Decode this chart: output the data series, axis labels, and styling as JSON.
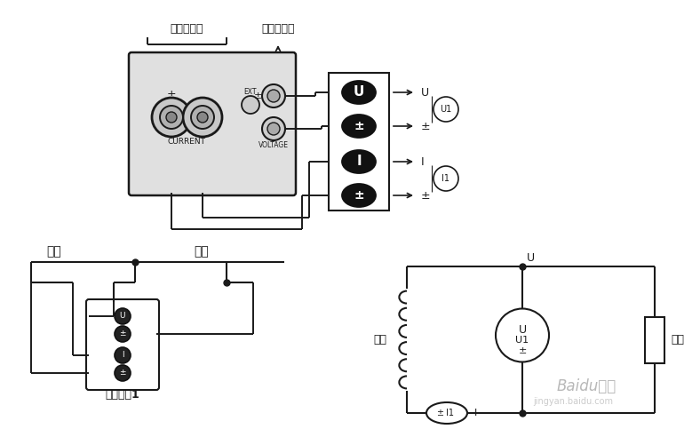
{
  "bg": "#ffffff",
  "lc": "#1a1a1a",
  "tc": "#1a1a1a",
  "label_dianliushuru": "电流输入端",
  "label_dianyashuru": "电压输入端",
  "label_CURRENT": "CURRENT",
  "label_VOLTAGE": "VOLTAGE",
  "label_EXT": "EXT",
  "label_U": "U",
  "label_pm": "±",
  "label_I": "I",
  "label_U1": "U1",
  "label_I1": "I1",
  "label_source": "电源",
  "label_load": "负载",
  "label_terminal": "输入端子1",
  "label_source2": "电源",
  "label_load2": "负载",
  "baidu1": "Baidu经验",
  "baidu2": "jingyan.baidu.com"
}
